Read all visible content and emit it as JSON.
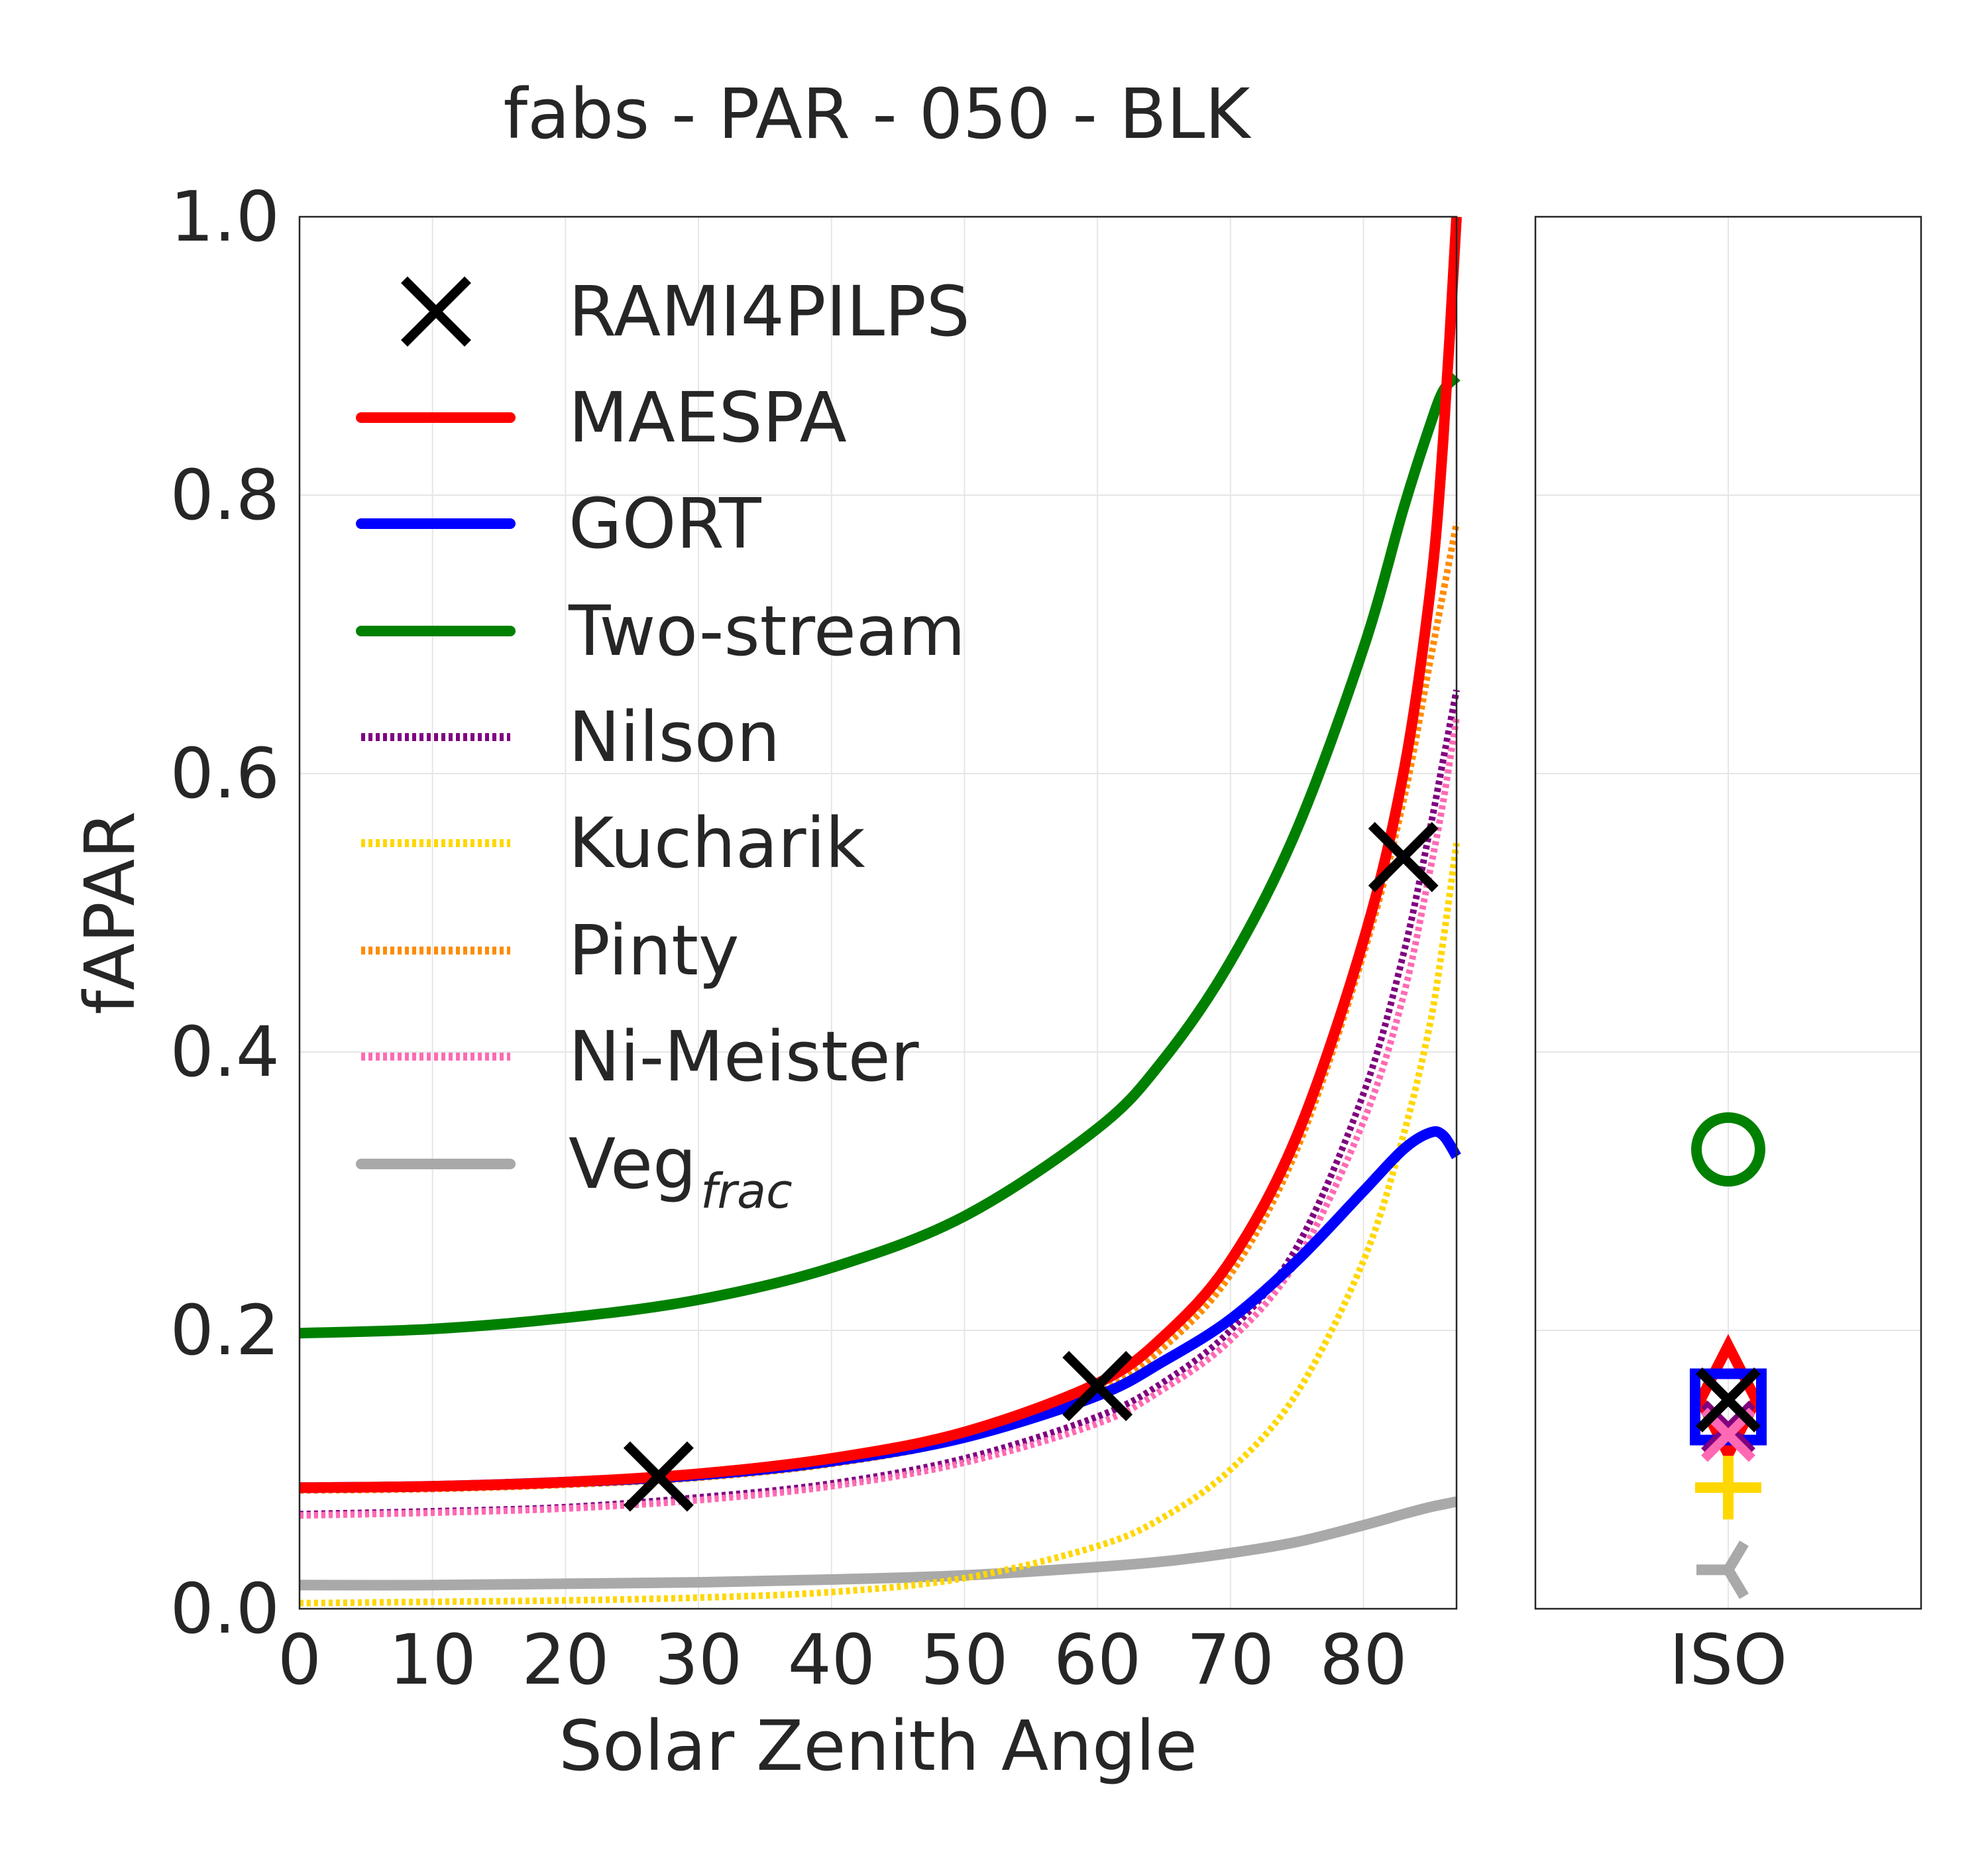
{
  "chart_data": [
    {
      "type": "line",
      "title": "fabs - PAR - 050 - BLK",
      "xlabel": "Solar Zenith Angle",
      "ylabel": "fAPAR",
      "xlim": [
        0,
        87
      ],
      "ylim": [
        0,
        1.0
      ],
      "xticks": [
        "0",
        "10",
        "20",
        "30",
        "40",
        "50",
        "60",
        "70",
        "80"
      ],
      "yticks": [
        "0.0",
        "0.2",
        "0.4",
        "0.6",
        "0.8",
        "1.0"
      ],
      "grid": true,
      "legend_position": "top-left",
      "series": [
        {
          "name": "RAMI4PILPS",
          "style": "marker-x",
          "color": "#000000",
          "x": [
            27,
            60,
            83
          ],
          "y": [
            0.095,
            0.16,
            0.54
          ]
        },
        {
          "name": "MAESPA",
          "style": "solid",
          "color": "#ff0000",
          "x": [
            0,
            10,
            20,
            30,
            40,
            50,
            60,
            65,
            70,
            75,
            80,
            83,
            85,
            86,
            87
          ],
          "y": [
            0.087,
            0.088,
            0.091,
            0.097,
            0.108,
            0.127,
            0.162,
            0.196,
            0.25,
            0.34,
            0.48,
            0.6,
            0.73,
            0.84,
            1.0
          ]
        },
        {
          "name": "GORT",
          "style": "solid",
          "color": "#0000ff",
          "x": [
            0,
            10,
            20,
            30,
            40,
            50,
            60,
            65,
            70,
            75,
            80,
            83,
            85,
            86,
            87
          ],
          "y": [
            0.087,
            0.088,
            0.091,
            0.096,
            0.106,
            0.123,
            0.153,
            0.178,
            0.208,
            0.25,
            0.3,
            0.33,
            0.342,
            0.34,
            0.325
          ]
        },
        {
          "name": "Two-stream",
          "style": "solid",
          "color": "#008000",
          "x": [
            0,
            10,
            20,
            30,
            40,
            50,
            60,
            65,
            70,
            75,
            80,
            83,
            85,
            86,
            87
          ],
          "y": [
            0.198,
            0.201,
            0.209,
            0.222,
            0.245,
            0.282,
            0.345,
            0.395,
            0.465,
            0.56,
            0.69,
            0.79,
            0.85,
            0.875,
            0.885
          ]
        },
        {
          "name": "Nilson",
          "style": "dotted",
          "color": "#800080",
          "x": [
            0,
            10,
            20,
            30,
            40,
            50,
            60,
            65,
            70,
            75,
            80,
            83,
            85,
            86,
            87
          ],
          "y": [
            0.068,
            0.07,
            0.073,
            0.08,
            0.09,
            0.108,
            0.138,
            0.163,
            0.2,
            0.26,
            0.37,
            0.47,
            0.56,
            0.61,
            0.66
          ]
        },
        {
          "name": "Kucharik",
          "style": "dotted",
          "color": "#ffd700",
          "x": [
            0,
            10,
            20,
            30,
            40,
            50,
            60,
            65,
            70,
            75,
            80,
            83,
            85,
            86,
            87
          ],
          "y": [
            0.004,
            0.005,
            0.006,
            0.008,
            0.012,
            0.022,
            0.045,
            0.066,
            0.1,
            0.155,
            0.25,
            0.34,
            0.42,
            0.48,
            0.55
          ]
        },
        {
          "name": "Pinty",
          "style": "dotted",
          "color": "#ff8c00",
          "x": [
            0,
            10,
            20,
            30,
            40,
            50,
            60,
            65,
            70,
            75,
            80,
            83,
            85,
            86,
            87
          ],
          "y": [
            0.085,
            0.086,
            0.089,
            0.094,
            0.104,
            0.122,
            0.155,
            0.188,
            0.24,
            0.33,
            0.47,
            0.58,
            0.68,
            0.73,
            0.78
          ]
        },
        {
          "name": "Ni-Meister",
          "style": "dotted",
          "color": "#ff69b4",
          "x": [
            0,
            10,
            20,
            30,
            40,
            50,
            60,
            65,
            70,
            75,
            80,
            83,
            85,
            86,
            87
          ],
          "y": [
            0.067,
            0.069,
            0.072,
            0.078,
            0.088,
            0.105,
            0.133,
            0.158,
            0.193,
            0.25,
            0.35,
            0.44,
            0.53,
            0.58,
            0.64
          ]
        },
        {
          "name": "Veg$_{frac}$",
          "label_main": "Veg",
          "label_sub": "frac",
          "style": "solid",
          "color": "#a9a9a9",
          "x": [
            0,
            10,
            20,
            30,
            40,
            50,
            60,
            65,
            70,
            75,
            80,
            83,
            85,
            86,
            87
          ],
          "y": [
            0.017,
            0.017,
            0.018,
            0.019,
            0.021,
            0.024,
            0.03,
            0.034,
            0.04,
            0.048,
            0.06,
            0.068,
            0.073,
            0.075,
            0.077
          ]
        }
      ]
    },
    {
      "type": "scatter",
      "categories": [
        "ISO"
      ],
      "ylim": [
        0,
        1.0
      ],
      "grid": true,
      "points": [
        {
          "series": "Two-stream",
          "marker": "circle",
          "color": "#008000",
          "y": 0.33
        },
        {
          "series": "MAESPA",
          "marker": "diamond",
          "color": "#ff0000",
          "y": 0.15
        },
        {
          "series": "GORT",
          "marker": "square",
          "color": "#0000ff",
          "y": 0.145
        },
        {
          "series": "Nilson",
          "marker": "x",
          "color": "#800080",
          "y": 0.13
        },
        {
          "series": "Ni-Meister",
          "marker": "x",
          "color": "#ff69b4",
          "y": 0.125
        },
        {
          "series": "Kucharik",
          "marker": "plus",
          "color": "#ffd700",
          "y": 0.087
        },
        {
          "series": "Veg$_{frac}$",
          "marker": "tri_left",
          "color": "#a9a9a9",
          "y": 0.028
        },
        {
          "series": "RAMI4PILPS",
          "marker": "x",
          "color": "#000000",
          "y": 0.15
        }
      ]
    }
  ]
}
